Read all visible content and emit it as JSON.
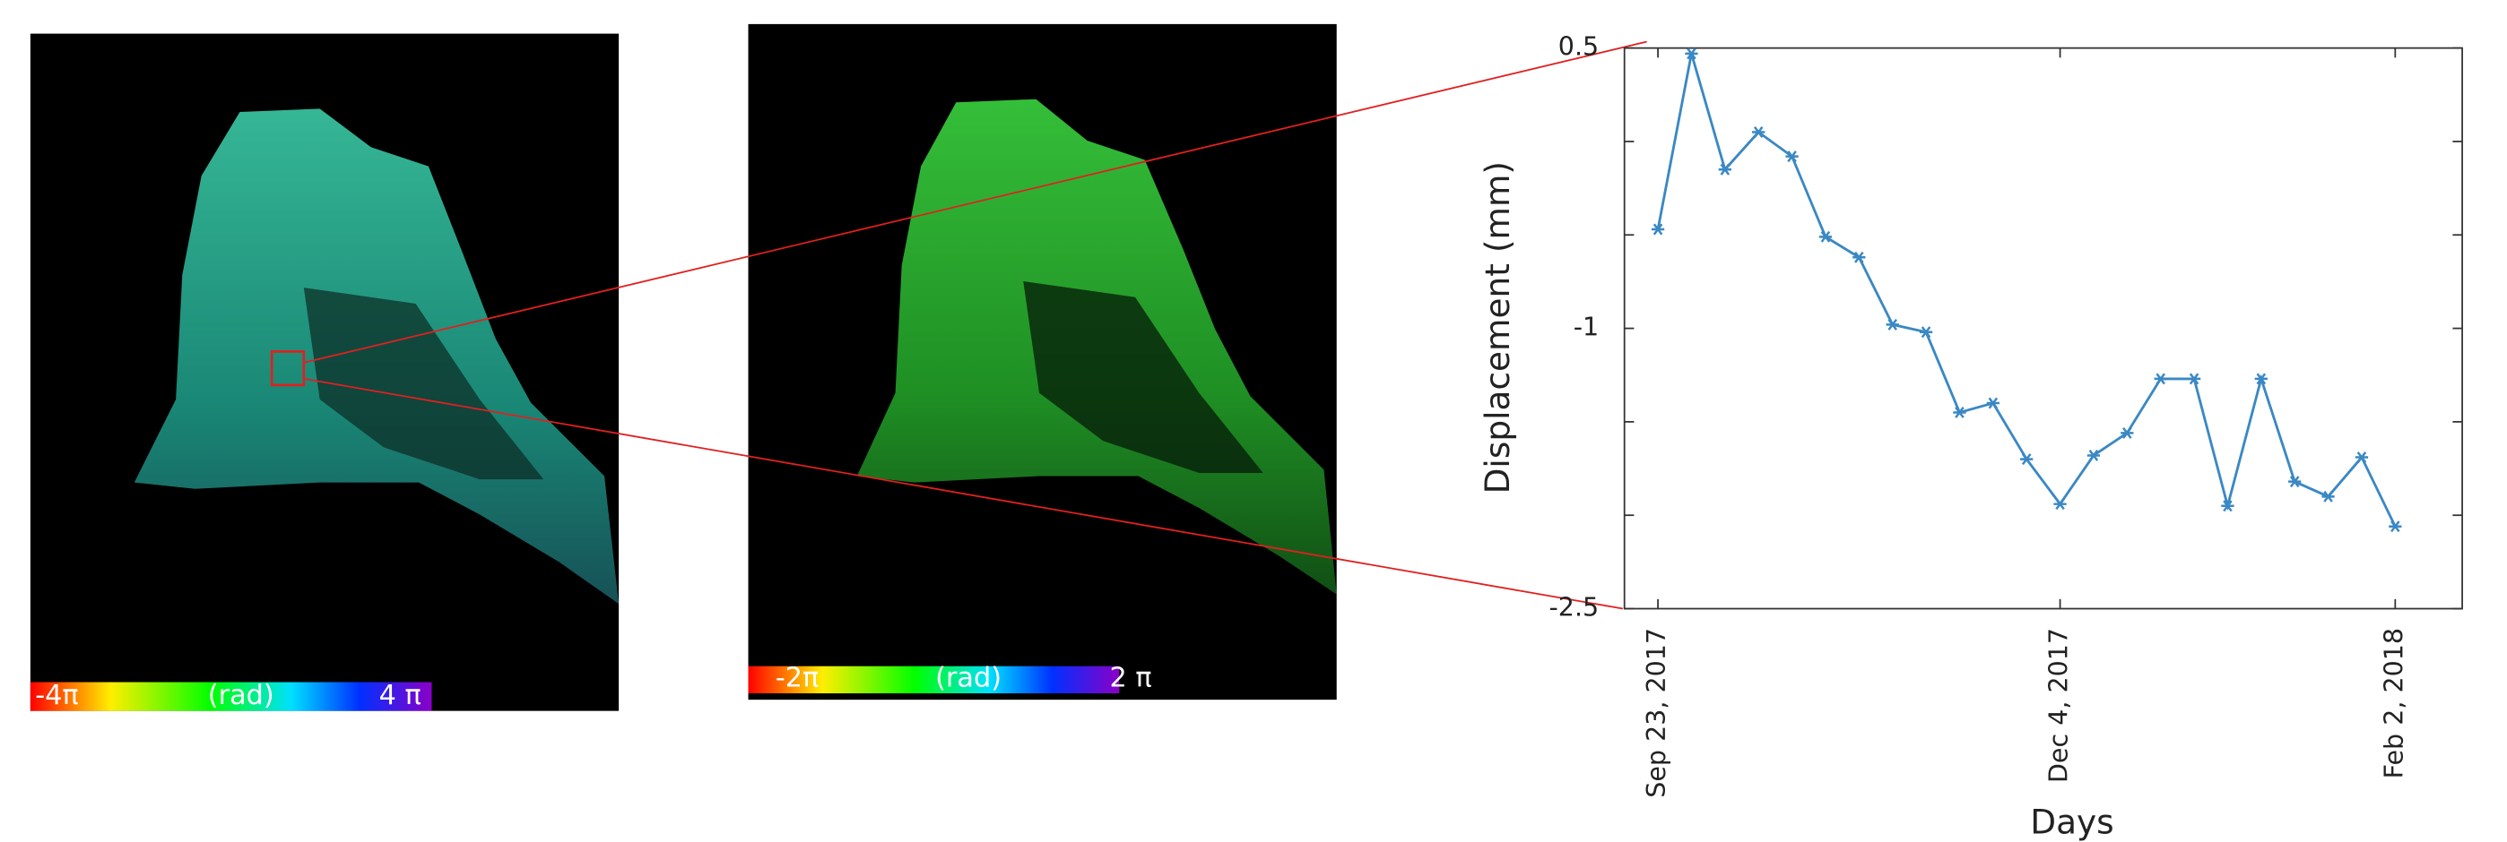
{
  "maps": [
    {
      "colorbar": {
        "labels": [
          "-4π",
          "(rad)",
          "4 π"
        ]
      }
    },
    {
      "colorbar": {
        "labels": [
          "-2π",
          "(rad)",
          "2 π"
        ]
      }
    }
  ],
  "chart_data": {
    "type": "line",
    "y_label": "Displacement (mm)",
    "x_label": "Days",
    "x": [
      0,
      6,
      12,
      18,
      24,
      30,
      36,
      42,
      48,
      54,
      60,
      66,
      72,
      78,
      84,
      90,
      96,
      102,
      108,
      114,
      120,
      126,
      132
    ],
    "series": [
      {
        "name": "Displacement",
        "color": "#3a88c4",
        "marker": "*",
        "values": [
          -0.47,
          0.47,
          -0.15,
          0.05,
          -0.08,
          -0.51,
          -0.62,
          -0.98,
          -1.02,
          -1.45,
          -1.4,
          -1.7,
          -1.94,
          -1.68,
          -1.56,
          -1.27,
          -1.27,
          -1.95,
          -1.27,
          -1.82,
          -1.9,
          -1.69,
          -2.06
        ]
      }
    ],
    "xlim": [
      -6,
      144
    ],
    "xticks": [
      {
        "value": 0,
        "label": "Sep 23, 2017"
      },
      {
        "value": 72,
        "label": "Dec 4, 2017"
      },
      {
        "value": 132,
        "label": "Feb 2, 2018"
      }
    ],
    "ylim": [
      -2.5,
      0.5
    ],
    "yticks": [
      0.5,
      -1,
      -2.5
    ],
    "minor_yticks": [
      0,
      -0.5,
      -1.5,
      -2
    ]
  }
}
